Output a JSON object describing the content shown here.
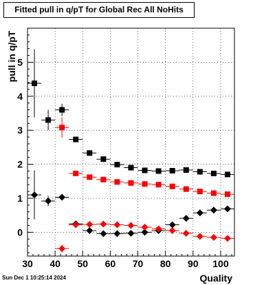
{
  "chart_data": {
    "type": "scatter",
    "title": "Fitted pull in q/pT for Global Rec All NoHits",
    "xlabel": "Quality",
    "ylabel": "pull in q/pT",
    "xlim": [
      30,
      105
    ],
    "ylim": [
      -0.7,
      6.0
    ],
    "x_ticks": [
      30,
      40,
      50,
      60,
      70,
      80,
      90,
      100
    ],
    "y_ticks": [
      0,
      1,
      2,
      3,
      4,
      5
    ],
    "grid": true,
    "legend": "none",
    "series": [
      {
        "marker": "square",
        "color": "#000000",
        "points": [
          {
            "x": 32.5,
            "y": 4.38,
            "yerr": 1.0
          },
          {
            "x": 37.5,
            "y": 3.3,
            "yerr": 0.3
          },
          {
            "x": 42.5,
            "y": 3.6,
            "yerr": 0.18
          },
          {
            "x": 47.5,
            "y": 2.73,
            "yerr": 0.06
          },
          {
            "x": 52.5,
            "y": 2.33,
            "yerr": 0.04
          },
          {
            "x": 57.5,
            "y": 2.15,
            "yerr": 0.04
          },
          {
            "x": 62.5,
            "y": 1.99,
            "yerr": 0.03
          },
          {
            "x": 67.5,
            "y": 1.9,
            "yerr": 0.03
          },
          {
            "x": 72.5,
            "y": 1.82,
            "yerr": 0.03
          },
          {
            "x": 77.5,
            "y": 1.8,
            "yerr": 0.03
          },
          {
            "x": 82.5,
            "y": 1.81,
            "yerr": 0.03
          },
          {
            "x": 87.5,
            "y": 1.83,
            "yerr": 0.03
          },
          {
            "x": 92.5,
            "y": 1.78,
            "yerr": 0.03
          },
          {
            "x": 97.5,
            "y": 1.73,
            "yerr": 0.03
          },
          {
            "x": 102.5,
            "y": 1.7,
            "yerr": 0.03
          }
        ]
      },
      {
        "marker": "square",
        "color": "#ff0000",
        "points": [
          {
            "x": 42.5,
            "y": 3.08,
            "yerr": 0.3
          },
          {
            "x": 47.5,
            "y": 1.73,
            "yerr": 0.05
          },
          {
            "x": 52.5,
            "y": 1.62,
            "yerr": 0.04
          },
          {
            "x": 57.5,
            "y": 1.55,
            "yerr": 0.03
          },
          {
            "x": 62.5,
            "y": 1.48,
            "yerr": 0.03
          },
          {
            "x": 67.5,
            "y": 1.45,
            "yerr": 0.03
          },
          {
            "x": 72.5,
            "y": 1.42,
            "yerr": 0.03
          },
          {
            "x": 77.5,
            "y": 1.4,
            "yerr": 0.03
          },
          {
            "x": 82.5,
            "y": 1.35,
            "yerr": 0.03
          },
          {
            "x": 87.5,
            "y": 1.27,
            "yerr": 0.03
          },
          {
            "x": 92.5,
            "y": 1.2,
            "yerr": 0.03
          },
          {
            "x": 97.5,
            "y": 1.15,
            "yerr": 0.03
          },
          {
            "x": 102.5,
            "y": 1.12,
            "yerr": 0.03
          }
        ]
      },
      {
        "marker": "diamond",
        "color": "#000000",
        "points": [
          {
            "x": 32.5,
            "y": 1.1,
            "yerr": 0.72
          },
          {
            "x": 37.5,
            "y": 0.92,
            "yerr": 0.15
          },
          {
            "x": 42.5,
            "y": 1.03,
            "yerr": 0.08
          },
          {
            "x": 47.5,
            "y": 0.25,
            "yerr": 0.04
          },
          {
            "x": 52.5,
            "y": 0.05,
            "yerr": 0.03
          },
          {
            "x": 57.5,
            "y": -0.04,
            "yerr": 0.03
          },
          {
            "x": 62.5,
            "y": -0.04,
            "yerr": 0.03
          },
          {
            "x": 67.5,
            "y": -0.03,
            "yerr": 0.03
          },
          {
            "x": 72.5,
            "y": 0.0,
            "yerr": 0.03
          },
          {
            "x": 77.5,
            "y": 0.05,
            "yerr": 0.03
          },
          {
            "x": 82.5,
            "y": 0.22,
            "yerr": 0.03
          },
          {
            "x": 87.5,
            "y": 0.41,
            "yerr": 0.03
          },
          {
            "x": 92.5,
            "y": 0.57,
            "yerr": 0.03
          },
          {
            "x": 97.5,
            "y": 0.65,
            "yerr": 0.03
          },
          {
            "x": 102.5,
            "y": 0.69,
            "yerr": 0.03
          }
        ]
      },
      {
        "marker": "diamond",
        "color": "#ff0000",
        "points": [
          {
            "x": 42.5,
            "y": -0.48,
            "yerr": 0.12
          },
          {
            "x": 47.5,
            "y": 0.22,
            "yerr": 0.04
          },
          {
            "x": 52.5,
            "y": 0.23,
            "yerr": 0.03
          },
          {
            "x": 57.5,
            "y": 0.24,
            "yerr": 0.03
          },
          {
            "x": 62.5,
            "y": 0.22,
            "yerr": 0.03
          },
          {
            "x": 67.5,
            "y": 0.2,
            "yerr": 0.03
          },
          {
            "x": 72.5,
            "y": 0.15,
            "yerr": 0.03
          },
          {
            "x": 77.5,
            "y": 0.1,
            "yerr": 0.03
          },
          {
            "x": 82.5,
            "y": 0.05,
            "yerr": 0.03
          },
          {
            "x": 87.5,
            "y": -0.03,
            "yerr": 0.03
          },
          {
            "x": 92.5,
            "y": -0.12,
            "yerr": 0.03
          },
          {
            "x": 97.5,
            "y": -0.15,
            "yerr": 0.03
          },
          {
            "x": 102.5,
            "y": -0.18,
            "yerr": 0.03
          }
        ]
      }
    ]
  },
  "footer": {
    "timestamp": "Sun Dec  1 10:25:14 2024"
  }
}
